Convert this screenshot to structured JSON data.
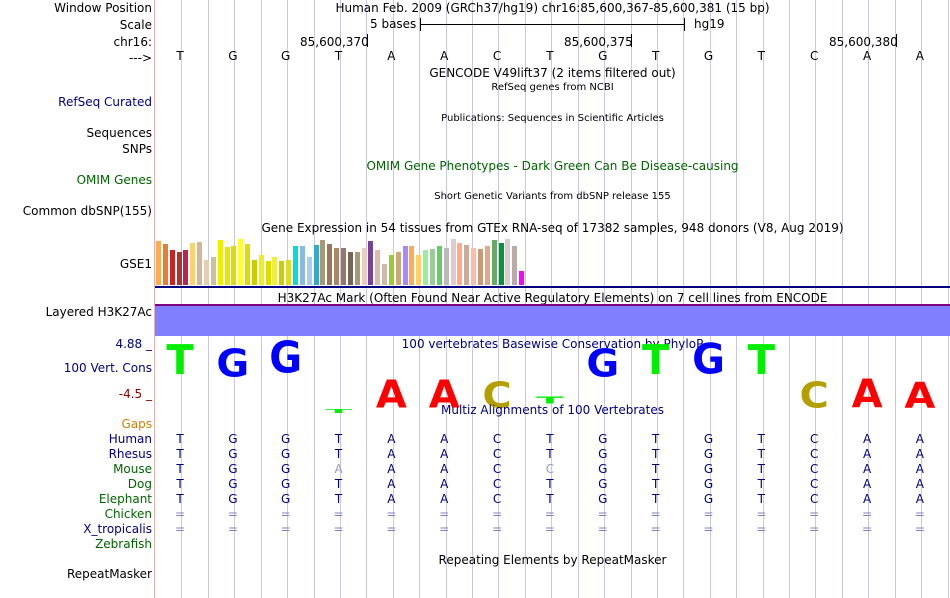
{
  "header": {
    "window_label": "Window Position",
    "window_value": "Human Feb. 2009 (GRCh37/hg19)   chr16:85,600,367-85,600,381 (15 bp)",
    "scale_label": "Scale",
    "scale_value": "5 bases",
    "scale_assembly": "hg19",
    "chrom_label": "chr16:",
    "ticks": [
      "85,600,370",
      "85,600,375",
      "85,600,380"
    ],
    "strand_label": "--->"
  },
  "bases": [
    "T",
    "G",
    "G",
    "T",
    "A",
    "A",
    "C",
    "T",
    "G",
    "T",
    "G",
    "T",
    "C",
    "A",
    "A"
  ],
  "tracks": {
    "gencode_title": "GENCODE V49lift37 (2 items filtered out)",
    "refseq_label": "RefSeq Curated",
    "refseq_title": "RefSeq genes from NCBI",
    "publications_title": "Publications: Sequences in Scientific Articles",
    "sequences_label": "Sequences",
    "snps_label": "SNPs",
    "omim_title": "OMIM Gene Phenotypes - Dark Green Can Be Disease-causing",
    "omim_label": "OMIM Genes",
    "dbsnp_title": "Short Genetic Variants from dbSNP release 155",
    "dbsnp_label": "Common dbSNP(155)",
    "gtex_title": "Gene Expression in 54 tissues from GTEx RNA-seq of 17382 samples, 948 donors (V8, Aug 2019)",
    "gse1_label": "GSE1",
    "h3k27ac_title": "H3K27Ac Mark (Often Found Near Active Regulatory Elements) on 7 cell lines from ENCODE",
    "h3k27ac_label": "Layered H3K27Ac",
    "cons_title": "100 vertebrates Basewise Conservation by PhyloP",
    "cons_label": "100 Vert. Cons",
    "cons_max": "4.88 _",
    "cons_min": "-4.5 _",
    "multiz_title": "Multiz Alignments of 100 Vertebrates",
    "gaps_label": "Gaps",
    "repeat_title": "Repeating Elements by RepeatMasker",
    "repeat_label": "RepeatMasker"
  },
  "colors": {
    "A": "#ff0000",
    "C": "#b3a000",
    "G": "#0000ff",
    "T": "#00ee00",
    "h3k27ac": "#8080ff",
    "navy": "#000080",
    "green": "#006400",
    "gaps": "#d08000"
  },
  "gtex_values": [
    0.95,
    0.9,
    0.75,
    0.72,
    0.75,
    0.92,
    0.93,
    0.55,
    0.6,
    0.98,
    0.82,
    0.85,
    1.0,
    0.9,
    0.55,
    0.65,
    0.52,
    0.6,
    0.52,
    0.55,
    0.85,
    0.85,
    0.6,
    0.88,
    0.98,
    0.9,
    0.8,
    0.8,
    0.72,
    0.72,
    0.8,
    0.95,
    0.75,
    0.45,
    0.65,
    0.72,
    0.85,
    0.85,
    0.65,
    0.75,
    0.78,
    0.85,
    0.8,
    1.0,
    0.92,
    0.88,
    0.8,
    0.78,
    0.85,
    0.98,
    0.92,
    1.0,
    0.85,
    0.3
  ],
  "gtex_colors": [
    "#ffaa55",
    "#e08030",
    "#cc2222",
    "#aa3333",
    "#bb2255",
    "#ffd070",
    "#d4b896",
    "#e0d0b0",
    "#ccc0a0",
    "#eeee00",
    "#e6e600",
    "#dddd00",
    "#ffff33",
    "#dddd00",
    "#cccc00",
    "#eeee22",
    "#dddd00",
    "#eeee44",
    "#cccc00",
    "#dddd22",
    "#00dddd",
    "#88bbdd",
    "#aaccee",
    "#33aacc",
    "#aa9977",
    "#99775a",
    "#aa8866",
    "#997766",
    "#776655",
    "#aa9977",
    "#eeccbb",
    "#774499",
    "#ddbbaa",
    "#ccbbaa",
    "#99cc33",
    "#ccaa77",
    "#aa88ff",
    "#ffaa55",
    "#ffcc66",
    "#99ee99",
    "#99cc99",
    "#66cc66",
    "#bbbbbb",
    "#ddcccc",
    "#ffaa88",
    "#ccaa99",
    "#ffbbaa",
    "#cc9977",
    "#ddaa88",
    "#66aa66",
    "#009933",
    "#ddcccc",
    "#bbaaaa",
    "#ff00ff"
  ],
  "cons_scores": [
    3.4,
    3.2,
    3.6,
    -0.2,
    -3.2,
    -3.2,
    -3.0,
    0.8,
    3.2,
    3.4,
    3.5,
    3.4,
    -3.0,
    -3.3,
    -3.0
  ],
  "species": [
    {
      "name": "Human",
      "color": "#000080",
      "seq": [
        "T",
        "G",
        "G",
        "T",
        "A",
        "A",
        "C",
        "T",
        "G",
        "T",
        "G",
        "T",
        "C",
        "A",
        "A"
      ]
    },
    {
      "name": "Rhesus",
      "color": "#000080",
      "seq": [
        "T",
        "G",
        "G",
        "T",
        "A",
        "A",
        "C",
        "T",
        "G",
        "T",
        "G",
        "T",
        "C",
        "A",
        "A"
      ]
    },
    {
      "name": "Mouse",
      "color": "#006400",
      "seq": [
        "T",
        "G",
        "G",
        "A",
        "A",
        "A",
        "C",
        "C",
        "G",
        "T",
        "G",
        "T",
        "C",
        "A",
        "A"
      ]
    },
    {
      "name": "Dog",
      "color": "#006400",
      "seq": [
        "T",
        "G",
        "G",
        "T",
        "A",
        "A",
        "C",
        "T",
        "G",
        "T",
        "G",
        "T",
        "C",
        "A",
        "A"
      ]
    },
    {
      "name": "Elephant",
      "color": "#006400",
      "seq": [
        "T",
        "G",
        "G",
        "T",
        "A",
        "A",
        "C",
        "T",
        "G",
        "T",
        "G",
        "T",
        "C",
        "A",
        "A"
      ]
    },
    {
      "name": "Chicken",
      "color": "#006400",
      "seq": [
        "=",
        "=",
        "=",
        "=",
        "=",
        "=",
        "=",
        "=",
        "=",
        "=",
        "=",
        "=",
        "=",
        "=",
        "="
      ]
    },
    {
      "name": "X_tropicalis",
      "color": "#000080",
      "seq": [
        "=",
        "=",
        "=",
        "=",
        "=",
        "=",
        "=",
        "=",
        "=",
        "=",
        "=",
        "=",
        "=",
        "=",
        "="
      ]
    },
    {
      "name": "Zebrafish",
      "color": "#006400",
      "seq": [
        "",
        "",
        "",
        "",
        "",
        "",
        "",
        "",
        "",
        "",
        "",
        "",
        "",
        "",
        ""
      ]
    }
  ]
}
